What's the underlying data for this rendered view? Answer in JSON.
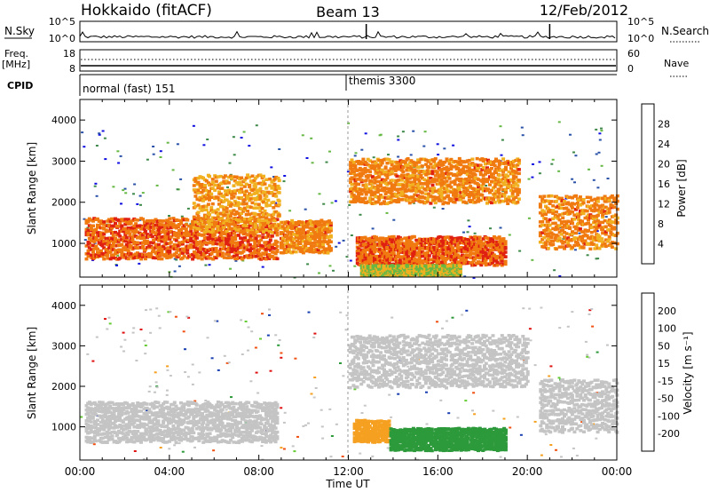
{
  "header": {
    "site": "Hokkaido (fitACF)",
    "beam": "Beam 13",
    "date": "12/Feb/2012"
  },
  "summary": {
    "nsky_label": "N.Sky",
    "nsky_top": "10^5",
    "nsky_bottom": "10^0",
    "nsky_top_right": "10^5",
    "nsky_bottom_right": "10^0",
    "nsearch_label": "N.Search",
    "freq_label_1": "Freq.",
    "freq_label_2": "[MHz]",
    "freq_top": "18",
    "freq_bottom": "8",
    "nave_top": "60",
    "nave_bottom": "0",
    "nave_label": "Nave",
    "cpid_label": "CPID",
    "cpid_segments": [
      {
        "start_ut": 0.0,
        "end_ut": 12.0,
        "label": "normal (fast) 151"
      },
      {
        "start_ut": 12.0,
        "end_ut": 24.0,
        "label": "themis 3300"
      }
    ]
  },
  "power_panel": {
    "ylabel": "Slant Range [km]",
    "yticks": [
      "1000",
      "2000",
      "3000",
      "4000"
    ],
    "colorbar_label": "Power [dB]",
    "colorbar_ticks": [
      "4",
      "8",
      "12",
      "16",
      "20",
      "24",
      "28"
    ],
    "colors": [
      "#1010e0",
      "#2a52a8",
      "#3f8a4a",
      "#66b845",
      "#f0b020",
      "#f07a10",
      "#e02010"
    ]
  },
  "velocity_panel": {
    "ylabel": "Slant Range [km]",
    "yticks": [
      "1000",
      "2000",
      "3000",
      "4000"
    ],
    "colorbar_label": "Velocity [m s⁻¹]",
    "colorbar_ticks": [
      "-200",
      "-100",
      "-50",
      "-15",
      "15",
      "50",
      "100",
      "200"
    ],
    "colors": [
      "#e01010",
      "#f05010",
      "#f5a020",
      "#c8c8c8",
      "#66cc33",
      "#2c9a3a",
      "#1a3fb0"
    ],
    "gs_color": "#c4c4c4"
  },
  "xaxis": {
    "ticks": [
      "00:00",
      "04:00",
      "08:00",
      "12:00",
      "16:00",
      "20:00",
      "00:00"
    ],
    "label": "Time UT"
  },
  "chart_data": {
    "type": "heatmap",
    "x_range_ut_hours": [
      0,
      24
    ],
    "y_range_km": [
      180,
      4500
    ],
    "power_db_range": [
      0,
      30
    ],
    "velocity_range": [
      -250,
      250
    ],
    "power_regions": [
      {
        "t0": 0.2,
        "t1": 8.8,
        "r0": 650,
        "r1": 1650,
        "power": 28
      },
      {
        "t0": 5.0,
        "t1": 8.9,
        "r0": 1300,
        "r1": 2700,
        "power": 24
      },
      {
        "t0": 8.9,
        "t1": 11.2,
        "r0": 800,
        "r1": 1600,
        "power": 26
      },
      {
        "t0": 12.3,
        "t1": 19.0,
        "r0": 500,
        "r1": 1200,
        "power": 28
      },
      {
        "t0": 12.0,
        "t1": 19.6,
        "r0": 2000,
        "r1": 3100,
        "power": 26
      },
      {
        "t0": 20.5,
        "t1": 24.0,
        "r0": 900,
        "r1": 2200,
        "power": 26
      },
      {
        "t0": 12.5,
        "t1": 17.0,
        "r0": 250,
        "r1": 500,
        "power": 20
      }
    ],
    "velocity_regions": [
      {
        "t0": 0.2,
        "t1": 8.8,
        "r0": 650,
        "r1": 1650,
        "velocity": 0
      },
      {
        "t0": 12.2,
        "t1": 13.8,
        "r0": 650,
        "r1": 1200,
        "velocity": -60
      },
      {
        "t0": 13.8,
        "t1": 19.0,
        "r0": 450,
        "r1": 1000,
        "velocity": 40
      },
      {
        "t0": 12.0,
        "t1": 20.0,
        "r0": 2000,
        "r1": 3300,
        "velocity": 0
      },
      {
        "t0": 20.5,
        "t1": 24.0,
        "r0": 900,
        "r1": 2200,
        "velocity": 0
      }
    ]
  }
}
